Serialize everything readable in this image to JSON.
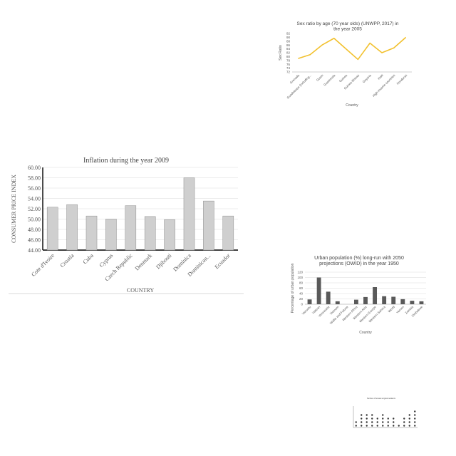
{
  "chart_data": [
    {
      "type": "line",
      "title": "Sex ratio by age (70 year olds) (UNWPP, 2017) in the year 2005",
      "xlabel": "Country",
      "ylabel": "Sex Ratio",
      "categories": [
        "Grenada",
        "Guadeloupe (including...",
        "Guam",
        "Guatemala",
        "Guinea",
        "Guinea-Bissau",
        "Guyana",
        "Haiti",
        "High-income countries",
        "Honduras"
      ],
      "values": [
        79,
        81,
        86,
        89.5,
        84,
        78.5,
        87,
        82,
        84.5,
        90
      ],
      "yticks": [
        "72",
        "74",
        "76",
        "78",
        "80",
        "82",
        "84",
        "86",
        "88",
        "90",
        "92"
      ],
      "ylim": [
        72,
        92
      ],
      "color": "#f2c12e"
    },
    {
      "type": "bar",
      "title": "Inflation during the year 2009",
      "xlabel": "COUNTRY",
      "ylabel": "CONSUMER PRICE INDEX",
      "categories": [
        "Cote d'Ivoire",
        "Croatia",
        "Cuba",
        "Cyprus",
        "Czech Republic",
        "Denmark",
        "Djibouti",
        "Dominica",
        "Dominican...",
        "Ecuador"
      ],
      "values": [
        52.3,
        52.8,
        50.6,
        50.0,
        52.6,
        50.5,
        49.9,
        58.0,
        53.5,
        50.6
      ],
      "yticks": [
        "44.00",
        "46.00",
        "48.00",
        "50.00",
        "52.00",
        "54.00",
        "56.00",
        "58.00",
        "60.00"
      ],
      "ylim": [
        44,
        60
      ],
      "color": "#cfcfcf"
    },
    {
      "type": "bar",
      "title": "Urban population (%) long-run with 2050 projections (OWID) in the year 1950",
      "xlabel": "Country",
      "ylabel": "Percentage of urban population",
      "categories": [
        "Vanuatu",
        "Vatican",
        "Venezuela",
        "Vietnam",
        "Wallis and Futuna",
        "Western Africa",
        "Western Asia",
        "Western Europe",
        "Western Sahara",
        "World",
        "Yemen",
        "Zambia",
        "Zimbabwe"
      ],
      "values": [
        18,
        100,
        47,
        11,
        0,
        17,
        27,
        64,
        30,
        28,
        19,
        13,
        11
      ],
      "yticks": [
        "0",
        "20",
        "40",
        "60",
        "80",
        "100",
        "120"
      ],
      "ylim": [
        0,
        120
      ],
      "color": "#595959"
    },
    {
      "type": "bar",
      "title": "Number of female surgical residents",
      "xlabel": "",
      "ylabel": "",
      "categories": [
        "",
        "",
        "",
        "",
        "",
        "",
        "",
        "",
        "",
        "",
        "",
        ""
      ],
      "values": [
        2,
        4,
        4,
        4,
        3,
        4,
        3,
        3,
        1,
        3,
        4,
        5
      ],
      "ylim": [
        0,
        6
      ],
      "color": "#333333"
    }
  ]
}
